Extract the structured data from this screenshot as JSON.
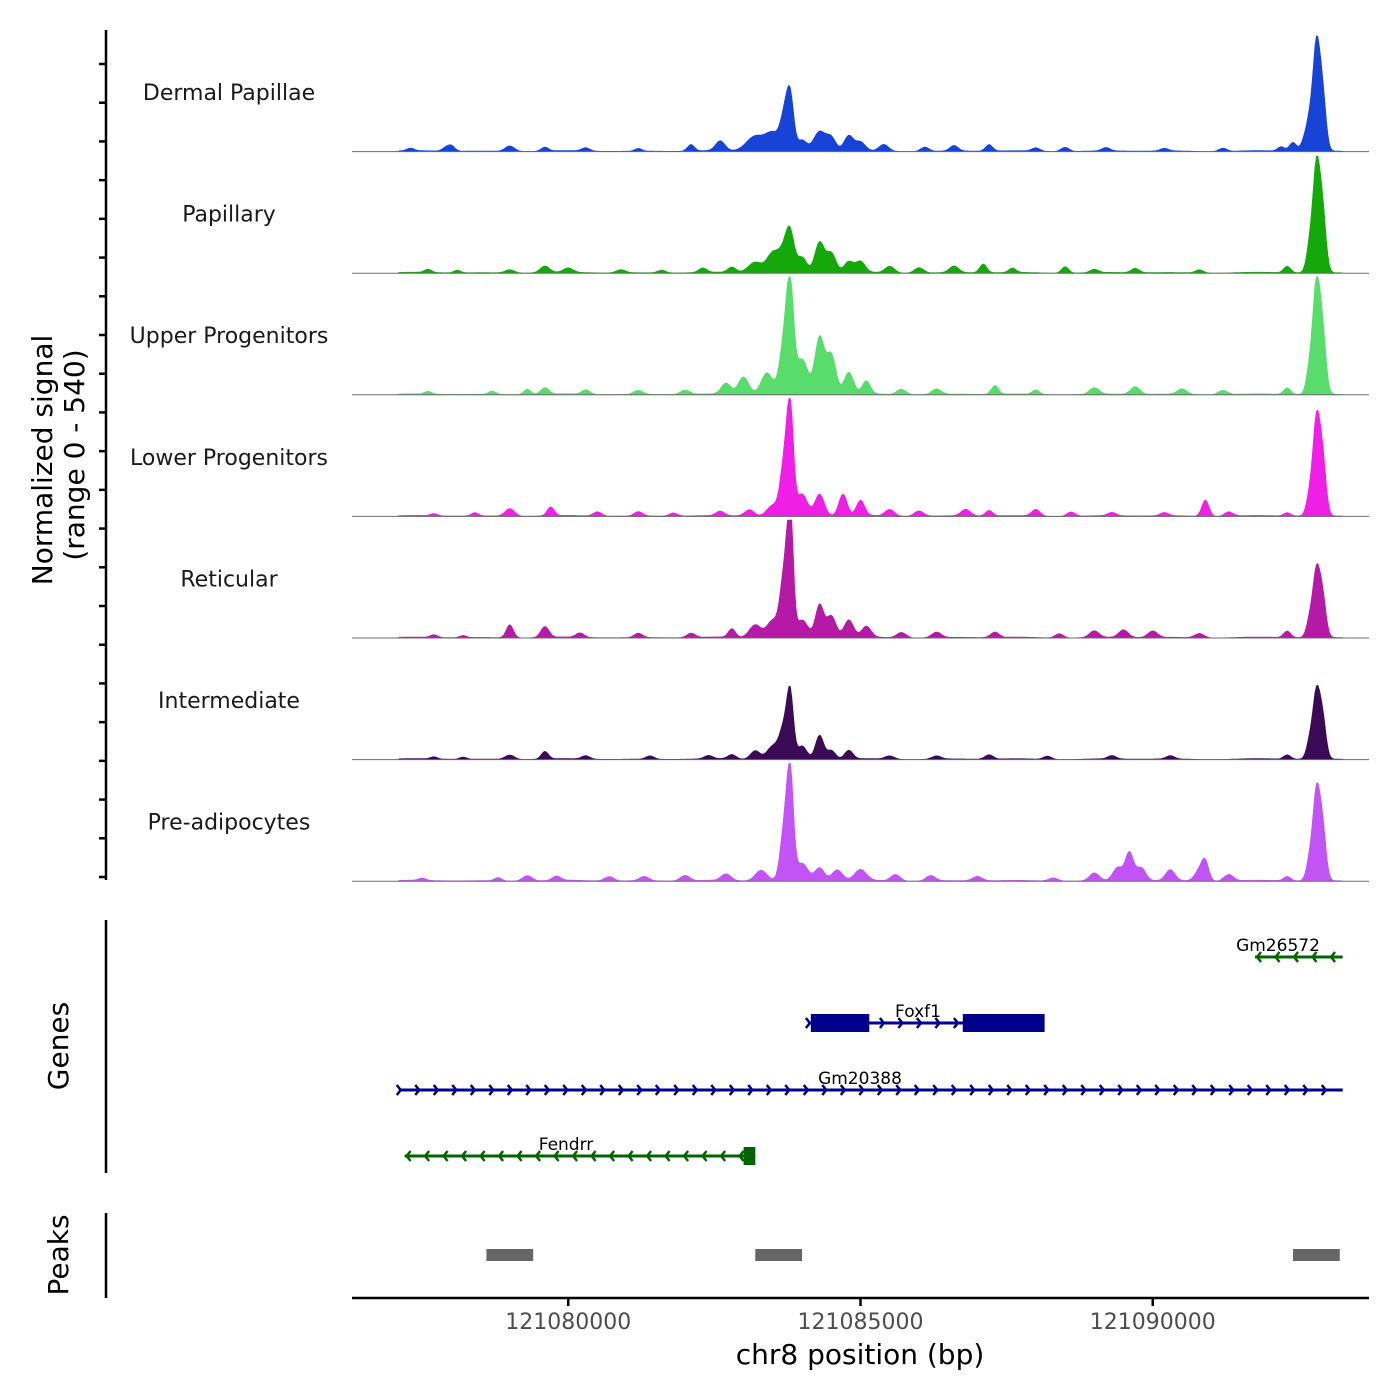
{
  "chart_data": {
    "type": "area",
    "title": "",
    "chromosome": "chr8",
    "xlabel": "chr8 position (bp)",
    "ylabel_line1": "Normalized signal",
    "ylabel_line2": "(range 0 - 540)",
    "genes_label": "Genes",
    "peaks_label": "Peaks",
    "xlim": [
      121076300,
      121093700
    ],
    "ylim": [
      0,
      540
    ],
    "x_ticks": [
      121080000,
      121085000,
      121090000
    ],
    "x_tick_labels": [
      "121080000",
      "121085000",
      "121090000"
    ],
    "series": [
      {
        "name": "Dermal Papillae",
        "color": "#1743d6",
        "peaks": [
          [
            121077300,
            12,
            60
          ],
          [
            121077900,
            15,
            60
          ],
          [
            121078000,
            25,
            60
          ],
          [
            121079000,
            25,
            80
          ],
          [
            121079600,
            18,
            60
          ],
          [
            121080300,
            15,
            70
          ],
          [
            121081200,
            12,
            60
          ],
          [
            121082100,
            30,
            60
          ],
          [
            121082600,
            45,
            80
          ],
          [
            121083200,
            70,
            150
          ],
          [
            121083700,
            150,
            70
          ],
          [
            121083800,
            230,
            60
          ],
          [
            121083500,
            80,
            120
          ],
          [
            121084000,
            50,
            80
          ],
          [
            121084300,
            90,
            100
          ],
          [
            121084500,
            60,
            80
          ],
          [
            121084800,
            70,
            80
          ],
          [
            121085000,
            40,
            80
          ],
          [
            121085400,
            30,
            80
          ],
          [
            121086100,
            20,
            70
          ],
          [
            121086600,
            25,
            70
          ],
          [
            121087200,
            30,
            60
          ],
          [
            121088000,
            15,
            70
          ],
          [
            121088500,
            20,
            70
          ],
          [
            121089200,
            15,
            70
          ],
          [
            121090200,
            12,
            70
          ],
          [
            121091200,
            15,
            70
          ],
          [
            121092200,
            20,
            60
          ],
          [
            121092400,
            40,
            60
          ],
          [
            121092600,
            50,
            60
          ],
          [
            121092800,
            420,
            55
          ],
          [
            121092900,
            280,
            60
          ],
          [
            121092700,
            150,
            60
          ]
        ]
      },
      {
        "name": "Papillary",
        "color": "#15a80b",
        "peaks": [
          [
            121077600,
            15,
            60
          ],
          [
            121078100,
            12,
            60
          ],
          [
            121079000,
            15,
            80
          ],
          [
            121079600,
            30,
            80
          ],
          [
            121080000,
            20,
            80
          ],
          [
            121080900,
            15,
            80
          ],
          [
            121081600,
            12,
            70
          ],
          [
            121082300,
            20,
            70
          ],
          [
            121082800,
            25,
            70
          ],
          [
            121083200,
            50,
            120
          ],
          [
            121083500,
            90,
            100
          ],
          [
            121083800,
            150,
            70
          ],
          [
            121083700,
            100,
            90
          ],
          [
            121084000,
            70,
            80
          ],
          [
            121084300,
            140,
            80
          ],
          [
            121084500,
            90,
            80
          ],
          [
            121084800,
            50,
            80
          ],
          [
            121085000,
            50,
            80
          ],
          [
            121085500,
            30,
            80
          ],
          [
            121086000,
            25,
            80
          ],
          [
            121086600,
            30,
            80
          ],
          [
            121087100,
            40,
            60
          ],
          [
            121087600,
            20,
            60
          ],
          [
            121088500,
            30,
            60
          ],
          [
            121089000,
            15,
            70
          ],
          [
            121089700,
            20,
            70
          ],
          [
            121090800,
            15,
            70
          ],
          [
            121092300,
            30,
            60
          ],
          [
            121092800,
            420,
            55
          ],
          [
            121092900,
            300,
            60
          ],
          [
            121092700,
            150,
            60
          ]
        ]
      },
      {
        "name": "Upper Progenitors",
        "color": "#58dc6c",
        "peaks": [
          [
            121077600,
            12,
            60
          ],
          [
            121078700,
            15,
            60
          ],
          [
            121079300,
            25,
            60
          ],
          [
            121079600,
            30,
            70
          ],
          [
            121080300,
            20,
            70
          ],
          [
            121081200,
            18,
            80
          ],
          [
            121082000,
            20,
            80
          ],
          [
            121082700,
            50,
            80
          ],
          [
            121083000,
            80,
            90
          ],
          [
            121083400,
            100,
            100
          ],
          [
            121083800,
            420,
            60
          ],
          [
            121083700,
            250,
            80
          ],
          [
            121084000,
            160,
            100
          ],
          [
            121084300,
            260,
            80
          ],
          [
            121084500,
            180,
            80
          ],
          [
            121084800,
            100,
            80
          ],
          [
            121085100,
            60,
            70
          ],
          [
            121085700,
            25,
            80
          ],
          [
            121086300,
            25,
            80
          ],
          [
            121087300,
            40,
            60
          ],
          [
            121088000,
            20,
            60
          ],
          [
            121089000,
            30,
            80
          ],
          [
            121089700,
            35,
            80
          ],
          [
            121090500,
            25,
            80
          ],
          [
            121091200,
            20,
            80
          ],
          [
            121092300,
            30,
            60
          ],
          [
            121092800,
            440,
            55
          ],
          [
            121092900,
            300,
            60
          ],
          [
            121092700,
            150,
            60
          ]
        ]
      },
      {
        "name": "Lower Progenitors",
        "color": "#f01fe6",
        "peaks": [
          [
            121077700,
            10,
            60
          ],
          [
            121078400,
            15,
            60
          ],
          [
            121079000,
            35,
            80
          ],
          [
            121079700,
            40,
            60
          ],
          [
            121080500,
            20,
            70
          ],
          [
            121081200,
            20,
            70
          ],
          [
            121081800,
            15,
            70
          ],
          [
            121082600,
            20,
            70
          ],
          [
            121083100,
            30,
            80
          ],
          [
            121083500,
            50,
            100
          ],
          [
            121083800,
            450,
            55
          ],
          [
            121083700,
            250,
            70
          ],
          [
            121084000,
            100,
            90
          ],
          [
            121084300,
            100,
            80
          ],
          [
            121084700,
            100,
            70
          ],
          [
            121085000,
            70,
            70
          ],
          [
            121085500,
            30,
            80
          ],
          [
            121086000,
            25,
            80
          ],
          [
            121086800,
            30,
            80
          ],
          [
            121087200,
            25,
            60
          ],
          [
            121088000,
            30,
            70
          ],
          [
            121088600,
            20,
            70
          ],
          [
            121089300,
            15,
            70
          ],
          [
            121090200,
            15,
            70
          ],
          [
            121090900,
            75,
            60
          ],
          [
            121091300,
            20,
            70
          ],
          [
            121092300,
            15,
            60
          ],
          [
            121092800,
            380,
            55
          ],
          [
            121092900,
            280,
            60
          ],
          [
            121092700,
            120,
            60
          ]
        ]
      },
      {
        "name": "Reticular",
        "color": "#b51aa6",
        "peaks": [
          [
            121077700,
            12,
            60
          ],
          [
            121078200,
            10,
            60
          ],
          [
            121079000,
            60,
            60
          ],
          [
            121079600,
            50,
            70
          ],
          [
            121080200,
            20,
            70
          ],
          [
            121081200,
            20,
            70
          ],
          [
            121082100,
            20,
            70
          ],
          [
            121082800,
            40,
            60
          ],
          [
            121083200,
            60,
            100
          ],
          [
            121083500,
            80,
            100
          ],
          [
            121083800,
            540,
            50
          ],
          [
            121083700,
            300,
            70
          ],
          [
            121084000,
            80,
            100
          ],
          [
            121084300,
            150,
            70
          ],
          [
            121084500,
            100,
            80
          ],
          [
            121084800,
            80,
            80
          ],
          [
            121085100,
            50,
            80
          ],
          [
            121085700,
            25,
            80
          ],
          [
            121086300,
            25,
            80
          ],
          [
            121087300,
            25,
            70
          ],
          [
            121088400,
            20,
            70
          ],
          [
            121089000,
            30,
            80
          ],
          [
            121089500,
            35,
            80
          ],
          [
            121090000,
            30,
            80
          ],
          [
            121090800,
            20,
            80
          ],
          [
            121092300,
            30,
            60
          ],
          [
            121092800,
            260,
            55
          ],
          [
            121092900,
            200,
            60
          ],
          [
            121092700,
            100,
            60
          ]
        ]
      },
      {
        "name": "Intermediate",
        "color": "#3a0a56",
        "peaks": [
          [
            121077700,
            10,
            60
          ],
          [
            121078200,
            10,
            60
          ],
          [
            121079000,
            20,
            80
          ],
          [
            121079600,
            35,
            60
          ],
          [
            121080300,
            15,
            70
          ],
          [
            121081400,
            15,
            70
          ],
          [
            121082400,
            15,
            70
          ],
          [
            121082800,
            20,
            70
          ],
          [
            121083200,
            40,
            80
          ],
          [
            121083500,
            60,
            100
          ],
          [
            121083800,
            260,
            55
          ],
          [
            121083700,
            150,
            80
          ],
          [
            121084000,
            60,
            80
          ],
          [
            121084300,
            110,
            70
          ],
          [
            121084500,
            40,
            70
          ],
          [
            121084800,
            40,
            70
          ],
          [
            121085500,
            15,
            80
          ],
          [
            121086300,
            15,
            80
          ],
          [
            121087200,
            20,
            70
          ],
          [
            121088200,
            15,
            70
          ],
          [
            121089300,
            15,
            70
          ],
          [
            121090300,
            15,
            70
          ],
          [
            121092300,
            20,
            60
          ],
          [
            121092800,
            260,
            55
          ],
          [
            121092900,
            200,
            60
          ],
          [
            121092700,
            100,
            60
          ]
        ]
      },
      {
        "name": "Pre-adipocytes",
        "color": "#c254f5",
        "peaks": [
          [
            121077500,
            10,
            60
          ],
          [
            121078800,
            15,
            60
          ],
          [
            121079300,
            25,
            80
          ],
          [
            121079800,
            20,
            70
          ],
          [
            121080700,
            20,
            80
          ],
          [
            121081300,
            20,
            80
          ],
          [
            121082000,
            25,
            80
          ],
          [
            121082700,
            30,
            80
          ],
          [
            121083300,
            50,
            100
          ],
          [
            121083800,
            450,
            55
          ],
          [
            121083700,
            250,
            70
          ],
          [
            121084000,
            80,
            100
          ],
          [
            121084300,
            60,
            80
          ],
          [
            121084600,
            50,
            90
          ],
          [
            121085000,
            50,
            100
          ],
          [
            121085600,
            30,
            80
          ],
          [
            121086200,
            25,
            80
          ],
          [
            121087000,
            20,
            80
          ],
          [
            121088300,
            15,
            80
          ],
          [
            121089000,
            35,
            80
          ],
          [
            121089400,
            60,
            80
          ],
          [
            121089600,
            130,
            70
          ],
          [
            121089800,
            60,
            80
          ],
          [
            121090300,
            50,
            80
          ],
          [
            121090800,
            50,
            80
          ],
          [
            121090900,
            80,
            60
          ],
          [
            121091300,
            30,
            80
          ],
          [
            121092300,
            20,
            60
          ],
          [
            121092800,
            350,
            55
          ],
          [
            121092900,
            260,
            60
          ],
          [
            121092700,
            120,
            60
          ]
        ]
      }
    ],
    "genes": [
      {
        "name": "Gm26572",
        "start": 121091750,
        "end": 121093250,
        "strand": "-",
        "color": "#006400",
        "exons": []
      },
      {
        "name": "Foxf1",
        "start": 121084100,
        "end": 121087900,
        "strand": "+",
        "color": "#00008b",
        "exons": [
          [
            121084150,
            121085150
          ],
          [
            121086750,
            121088150
          ]
        ]
      },
      {
        "name": "Gm20388",
        "start": 121077100,
        "end": 121093250,
        "strand": "+",
        "color": "#00008b",
        "exons": []
      },
      {
        "name": "Fendrr",
        "start": 121077200,
        "end": 121083200,
        "strand": "-",
        "color": "#006400",
        "exons": [
          [
            121083000,
            121083200
          ]
        ]
      }
    ],
    "peaks": [
      [
        121078600,
        121079400
      ],
      [
        121083200,
        121084000
      ],
      [
        121092400,
        121093200
      ]
    ],
    "peak_color": "#666666"
  }
}
